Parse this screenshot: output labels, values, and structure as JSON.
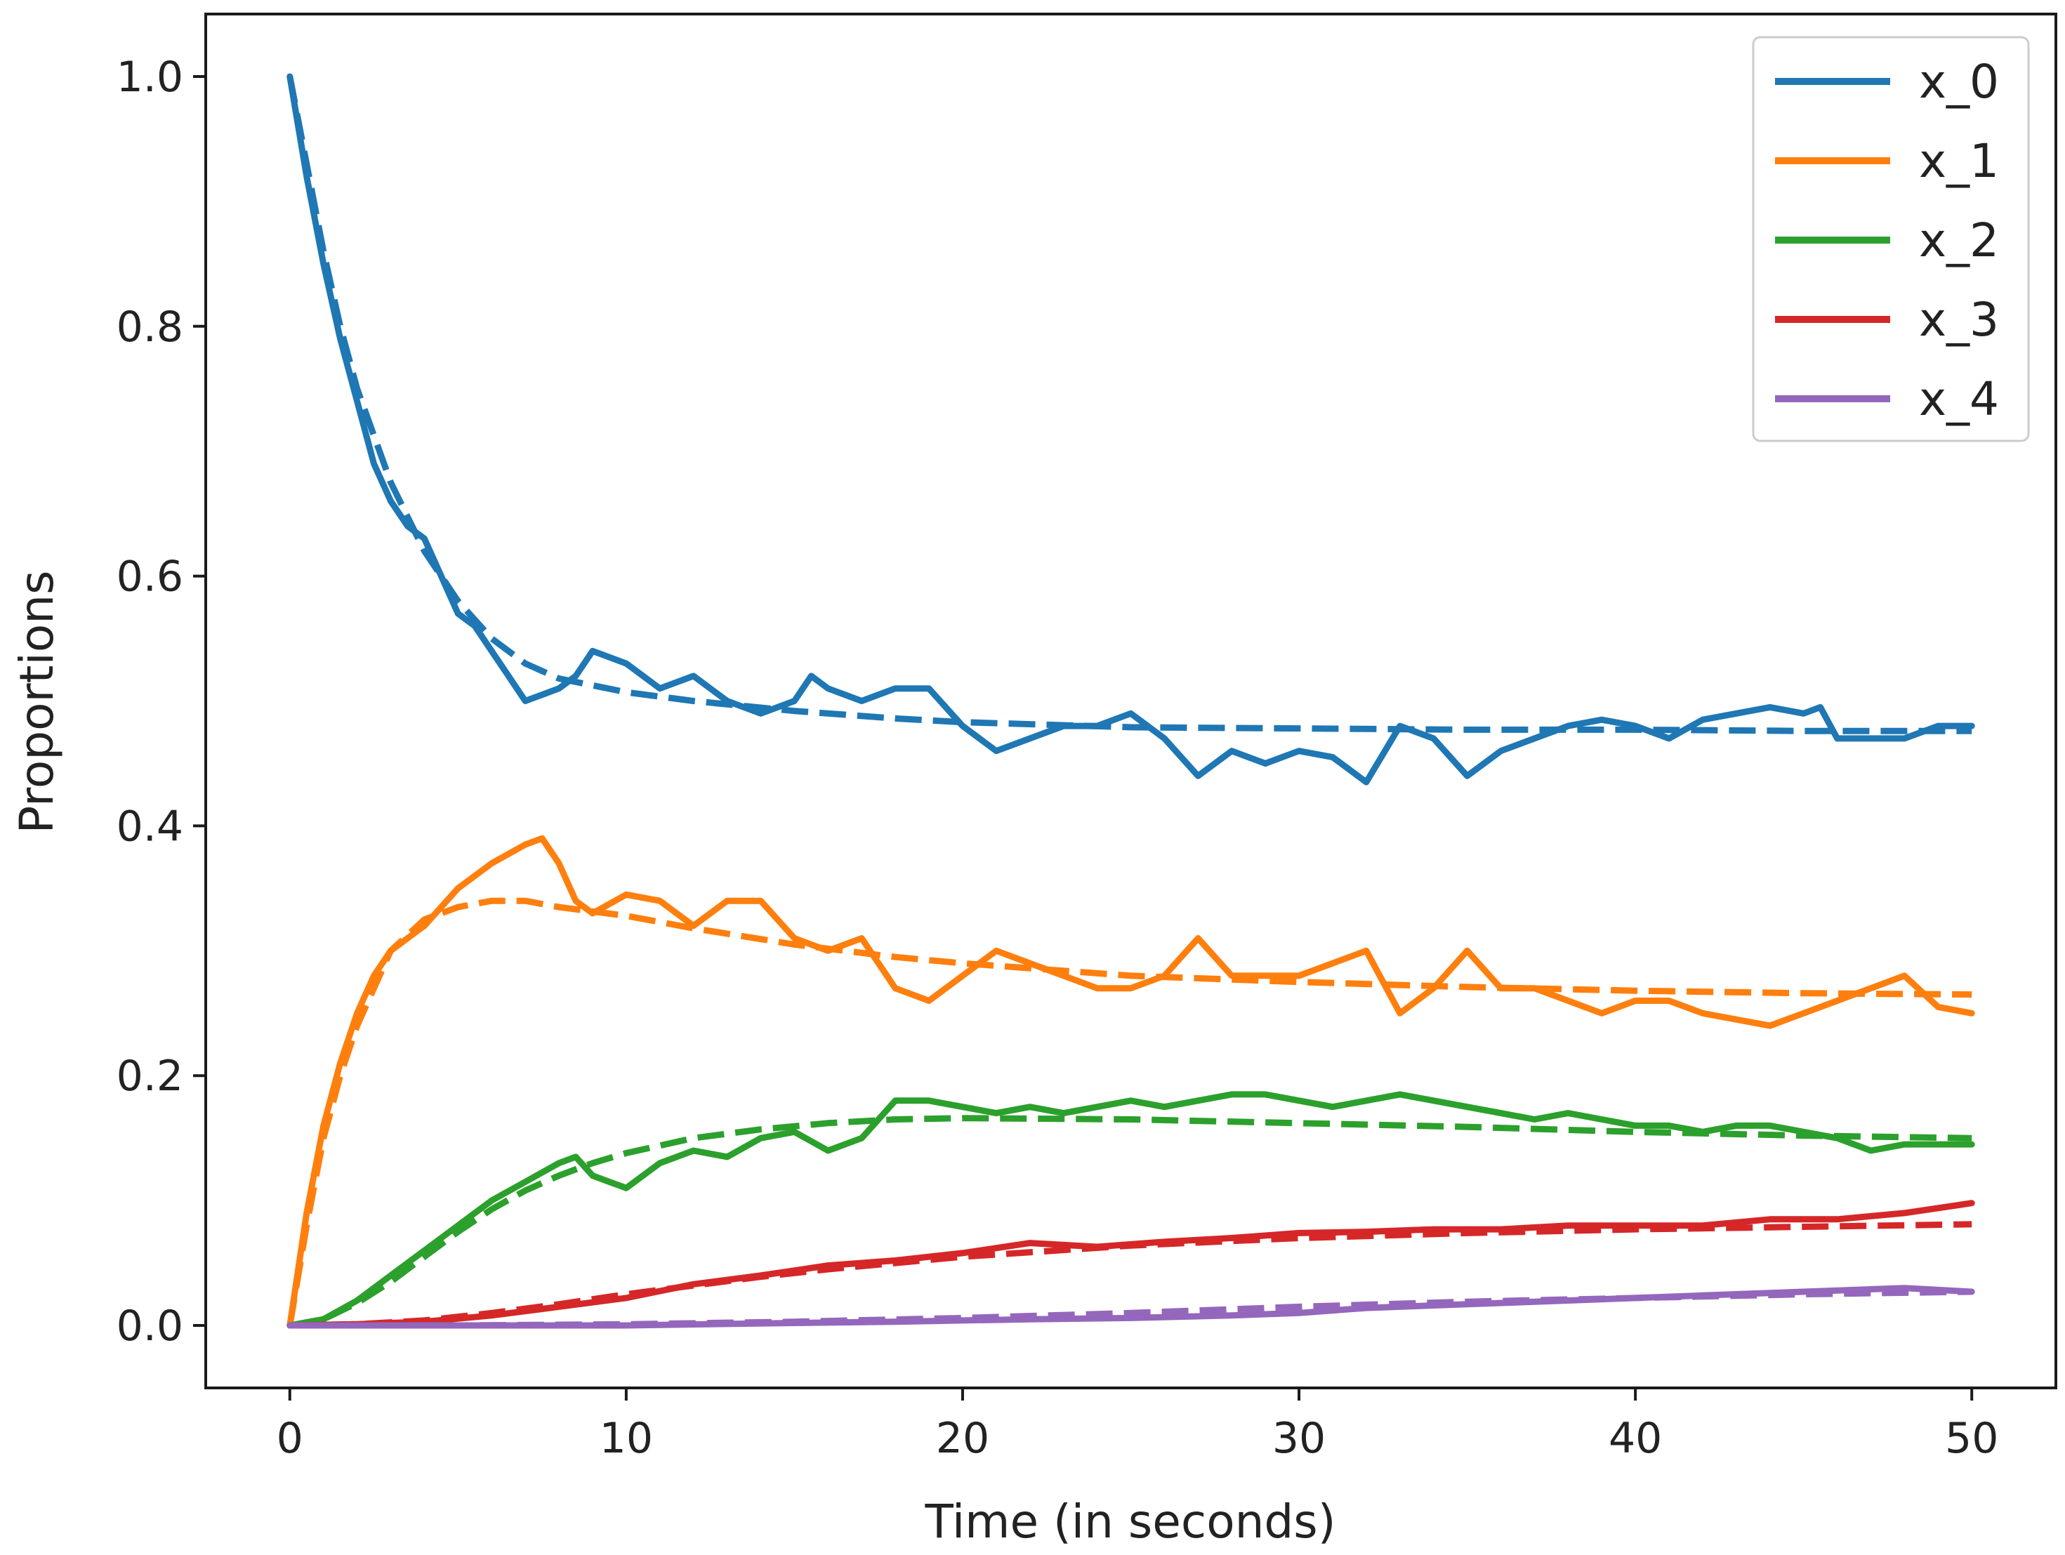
{
  "chart_data": {
    "type": "line",
    "title": "",
    "xlabel": "Time (in seconds)",
    "ylabel": "Proportions",
    "xlim": [
      -2.5,
      52.5
    ],
    "ylim": [
      -0.05,
      1.05
    ],
    "xticks": [
      0,
      10,
      20,
      30,
      40,
      50
    ],
    "xtick_labels": [
      "0",
      "10",
      "20",
      "30",
      "40",
      "50"
    ],
    "yticks": [
      0.0,
      0.2,
      0.4,
      0.6,
      0.8,
      1.0
    ],
    "ytick_labels": [
      "0.0",
      "0.2",
      "0.4",
      "0.6",
      "0.8",
      "1.0"
    ],
    "grid": false,
    "legend_position": "top-right",
    "series": [
      {
        "name": "x_0",
        "color": "#1f77b4",
        "style": "solid",
        "x": [
          0,
          0.5,
          1,
          1.5,
          2,
          2.5,
          3,
          3.5,
          4,
          4.5,
          5,
          5.5,
          6,
          6.5,
          7,
          7.5,
          8,
          8.5,
          9,
          9.5,
          10,
          11,
          12,
          13,
          14,
          15,
          15.5,
          16,
          17,
          18,
          19,
          20,
          21,
          22,
          23,
          24,
          25,
          26,
          27,
          28,
          29,
          30,
          31,
          32,
          33,
          34,
          35,
          36,
          37,
          38,
          39,
          40,
          41,
          42,
          43,
          44,
          45,
          45.5,
          46,
          47,
          48,
          49,
          50
        ],
        "y": [
          1.0,
          0.92,
          0.85,
          0.79,
          0.74,
          0.69,
          0.66,
          0.64,
          0.63,
          0.6,
          0.57,
          0.56,
          0.54,
          0.52,
          0.5,
          0.505,
          0.51,
          0.52,
          0.54,
          0.535,
          0.53,
          0.51,
          0.52,
          0.5,
          0.49,
          0.5,
          0.52,
          0.51,
          0.5,
          0.51,
          0.51,
          0.48,
          0.46,
          0.47,
          0.48,
          0.48,
          0.49,
          0.47,
          0.44,
          0.46,
          0.45,
          0.46,
          0.455,
          0.435,
          0.48,
          0.47,
          0.44,
          0.46,
          0.47,
          0.48,
          0.485,
          0.48,
          0.47,
          0.485,
          0.49,
          0.495,
          0.49,
          0.495,
          0.47,
          0.47,
          0.47,
          0.48,
          0.48
        ]
      },
      {
        "name": "x_1",
        "color": "#ff7f0e",
        "style": "solid",
        "x": [
          0,
          0.5,
          1,
          1.5,
          2,
          2.5,
          3,
          4,
          5,
          6,
          7,
          7.5,
          8,
          8.5,
          9,
          10,
          11,
          12,
          13,
          14,
          15,
          16,
          17,
          18,
          19,
          20,
          21,
          22,
          23,
          24,
          25,
          26,
          27,
          28,
          29,
          30,
          31,
          32,
          33,
          34,
          35,
          36,
          37,
          38,
          39,
          40,
          41,
          42,
          43,
          44,
          45,
          46,
          47,
          48,
          49,
          50
        ],
        "y": [
          0.0,
          0.09,
          0.16,
          0.21,
          0.25,
          0.28,
          0.3,
          0.32,
          0.35,
          0.37,
          0.385,
          0.39,
          0.37,
          0.34,
          0.33,
          0.345,
          0.34,
          0.32,
          0.34,
          0.34,
          0.31,
          0.3,
          0.31,
          0.27,
          0.26,
          0.28,
          0.3,
          0.29,
          0.28,
          0.27,
          0.27,
          0.28,
          0.31,
          0.28,
          0.28,
          0.28,
          0.29,
          0.3,
          0.25,
          0.27,
          0.3,
          0.27,
          0.27,
          0.26,
          0.25,
          0.26,
          0.26,
          0.25,
          0.245,
          0.24,
          0.25,
          0.26,
          0.27,
          0.28,
          0.255,
          0.25
        ]
      },
      {
        "name": "x_2",
        "color": "#2ca02c",
        "style": "solid",
        "x": [
          0,
          1,
          2,
          3,
          4,
          5,
          6,
          7,
          8,
          8.5,
          9,
          9.5,
          10,
          11,
          12,
          13,
          14,
          15,
          16,
          17,
          18,
          19,
          20,
          21,
          22,
          23,
          24,
          25,
          26,
          27,
          28,
          29,
          30,
          31,
          32,
          33,
          34,
          35,
          36,
          37,
          38,
          39,
          40,
          41,
          42,
          43,
          44,
          45,
          46,
          47,
          48,
          49,
          50
        ],
        "y": [
          0.0,
          0.005,
          0.02,
          0.04,
          0.06,
          0.08,
          0.1,
          0.115,
          0.13,
          0.135,
          0.12,
          0.115,
          0.11,
          0.13,
          0.14,
          0.135,
          0.15,
          0.155,
          0.14,
          0.15,
          0.18,
          0.18,
          0.175,
          0.17,
          0.175,
          0.17,
          0.175,
          0.18,
          0.175,
          0.18,
          0.185,
          0.185,
          0.18,
          0.175,
          0.18,
          0.185,
          0.18,
          0.175,
          0.17,
          0.165,
          0.17,
          0.165,
          0.16,
          0.16,
          0.155,
          0.16,
          0.16,
          0.155,
          0.15,
          0.14,
          0.145,
          0.145,
          0.145
        ]
      },
      {
        "name": "x_3",
        "color": "#d62728",
        "style": "solid",
        "x": [
          0,
          2,
          4,
          6,
          8,
          10,
          12,
          14,
          16,
          18,
          20,
          22,
          24,
          26,
          28,
          30,
          32,
          34,
          36,
          38,
          40,
          42,
          44,
          46,
          48,
          50
        ],
        "y": [
          0.0,
          0.001,
          0.003,
          0.008,
          0.015,
          0.022,
          0.033,
          0.04,
          0.048,
          0.052,
          0.058,
          0.066,
          0.063,
          0.067,
          0.07,
          0.074,
          0.075,
          0.077,
          0.077,
          0.08,
          0.08,
          0.08,
          0.085,
          0.085,
          0.09,
          0.098
        ]
      },
      {
        "name": "x_4",
        "color": "#9467bd",
        "style": "solid",
        "x": [
          0,
          5,
          10,
          15,
          18,
          20,
          22,
          25,
          28,
          30,
          32,
          35,
          38,
          40,
          42,
          45,
          48,
          50
        ],
        "y": [
          0.0,
          0.0,
          0.0,
          0.002,
          0.003,
          0.004,
          0.005,
          0.006,
          0.008,
          0.01,
          0.014,
          0.017,
          0.02,
          0.022,
          0.024,
          0.027,
          0.03,
          0.027
        ]
      },
      {
        "name": "",
        "color": "#1f77b4",
        "style": "dashed",
        "x": [
          0,
          0.5,
          1,
          1.5,
          2,
          3,
          4,
          5,
          6,
          7,
          8,
          10,
          12,
          15,
          18,
          20,
          25,
          30,
          35,
          40,
          45,
          50
        ],
        "y": [
          1.0,
          0.93,
          0.86,
          0.8,
          0.75,
          0.675,
          0.62,
          0.58,
          0.55,
          0.53,
          0.518,
          0.507,
          0.5,
          0.492,
          0.486,
          0.483,
          0.479,
          0.478,
          0.477,
          0.477,
          0.476,
          0.476
        ]
      },
      {
        "name": "",
        "color": "#ff7f0e",
        "style": "dashed",
        "x": [
          0,
          0.5,
          1,
          1.5,
          2,
          3,
          4,
          5,
          6,
          7,
          8,
          10,
          12,
          15,
          18,
          20,
          25,
          30,
          35,
          40,
          45,
          50
        ],
        "y": [
          0.0,
          0.08,
          0.15,
          0.2,
          0.24,
          0.3,
          0.325,
          0.335,
          0.34,
          0.34,
          0.335,
          0.328,
          0.318,
          0.305,
          0.295,
          0.29,
          0.28,
          0.275,
          0.271,
          0.268,
          0.266,
          0.265
        ]
      },
      {
        "name": "",
        "color": "#2ca02c",
        "style": "dashed",
        "x": [
          0,
          1,
          2,
          3,
          4,
          5,
          6,
          7,
          8,
          9,
          10,
          12,
          14,
          16,
          18,
          20,
          25,
          30,
          35,
          40,
          45,
          50
        ],
        "y": [
          0.0,
          0.005,
          0.018,
          0.035,
          0.055,
          0.075,
          0.093,
          0.108,
          0.12,
          0.13,
          0.138,
          0.15,
          0.157,
          0.162,
          0.165,
          0.166,
          0.165,
          0.162,
          0.159,
          0.155,
          0.152,
          0.15
        ]
      },
      {
        "name": "",
        "color": "#d62728",
        "style": "dashed",
        "x": [
          0,
          2,
          4,
          6,
          8,
          10,
          12,
          14,
          16,
          18,
          20,
          25,
          30,
          35,
          40,
          45,
          50
        ],
        "y": [
          0.0,
          0.001,
          0.004,
          0.01,
          0.017,
          0.025,
          0.032,
          0.039,
          0.045,
          0.05,
          0.055,
          0.064,
          0.07,
          0.074,
          0.077,
          0.079,
          0.081
        ]
      },
      {
        "name": "",
        "color": "#9467bd",
        "style": "dashed",
        "x": [
          0,
          5,
          10,
          15,
          20,
          25,
          30,
          35,
          40,
          45,
          50
        ],
        "y": [
          0.0,
          0.0,
          0.001,
          0.003,
          0.006,
          0.01,
          0.015,
          0.019,
          0.022,
          0.025,
          0.027
        ]
      }
    ]
  }
}
